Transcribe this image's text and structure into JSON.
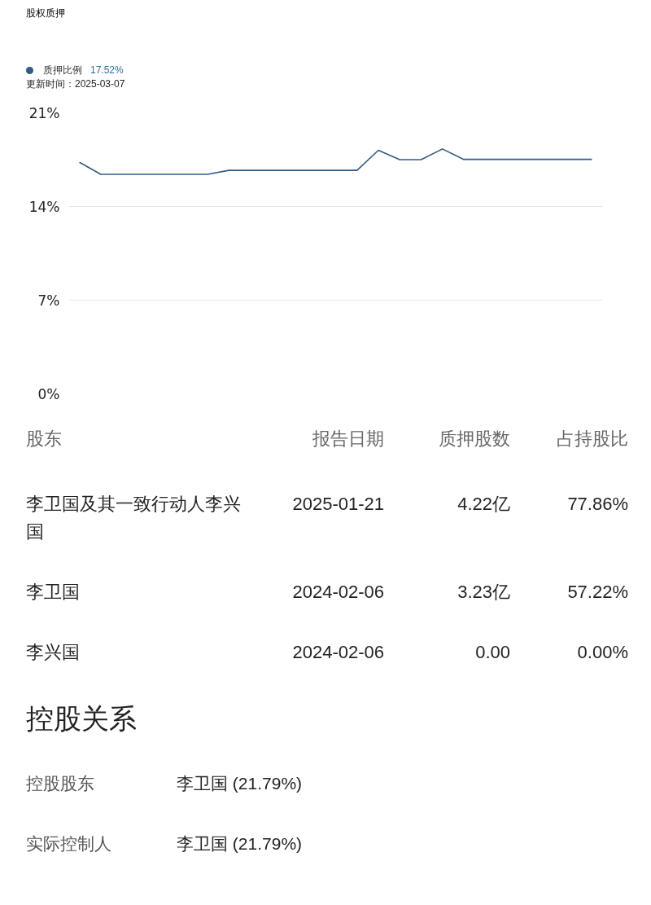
{
  "chart_data": {
    "type": "line",
    "title": "股权质押",
    "categories": [
      null,
      null,
      null,
      null,
      null,
      null,
      null,
      null,
      null,
      null,
      null,
      null,
      null,
      null,
      null,
      null,
      null,
      null,
      null,
      null,
      null,
      null,
      null,
      null,
      null
    ],
    "series": [
      {
        "name": "质押比例",
        "color": "#2f5b86",
        "values": [
          17.3,
          16.4,
          16.4,
          16.4,
          16.4,
          16.4,
          16.4,
          16.7,
          16.7,
          16.7,
          16.7,
          16.7,
          16.7,
          16.7,
          18.2,
          17.5,
          17.5,
          18.3,
          17.52,
          17.52,
          17.52,
          17.52,
          17.52,
          17.52,
          17.52
        ]
      }
    ],
    "ylim": [
      0,
      21
    ],
    "yticks": [
      {
        "value": 0,
        "label": "0%"
      },
      {
        "value": 7,
        "label": "7%"
      },
      {
        "value": 14,
        "label": "14%"
      },
      {
        "value": 21,
        "label": "21%"
      }
    ],
    "grid": "y",
    "legend": "top left",
    "tick_labels": "y",
    "marker": "none",
    "line_style": "solid",
    "annotations": [
      "17.52%",
      "更新时间：2025-03-07",
      "股东",
      "报告日期",
      "质押股数",
      "占持股比",
      "李卫国及其一致行动人李兴国",
      "2025-01-21",
      "4.22亿",
      "77.86%",
      "李卫国",
      "2024-02-06",
      "3.23亿",
      "57.22%",
      "李兴国",
      "2024-02-06",
      "0.00",
      "0.00%",
      "控股关系",
      "控股股东",
      "李卫国 (21.79%)",
      "实际控制人",
      "李卫国 (21.79%)"
    ]
  }
}
